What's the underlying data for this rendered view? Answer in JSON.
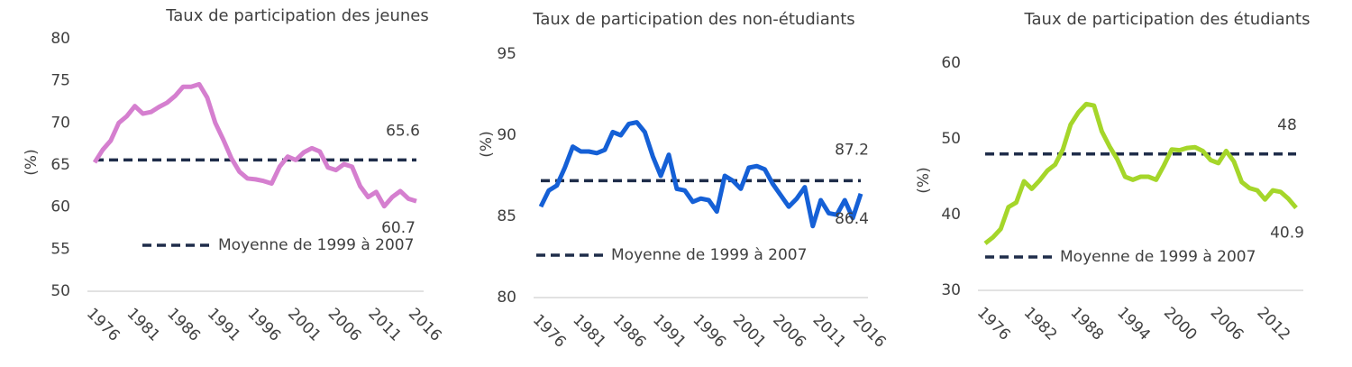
{
  "chart_data": [
    {
      "type": "line",
      "title": "Taux de participation des jeunes",
      "y_label": "(%)",
      "x": [
        1976,
        1977,
        1978,
        1979,
        1980,
        1981,
        1982,
        1983,
        1984,
        1985,
        1986,
        1987,
        1988,
        1989,
        1990,
        1991,
        1992,
        1993,
        1994,
        1995,
        1996,
        1997,
        1998,
        1999,
        2000,
        2001,
        2002,
        2003,
        2004,
        2005,
        2006,
        2007,
        2008,
        2009,
        2010,
        2011,
        2012,
        2013,
        2014,
        2015,
        2016
      ],
      "xlim": [
        1976,
        2016
      ],
      "xticks": [
        1976,
        1981,
        1986,
        1991,
        1996,
        2001,
        2006,
        2011,
        2016
      ],
      "ylim": [
        50,
        80
      ],
      "yticks": [
        50,
        55,
        60,
        65,
        70,
        75,
        80
      ],
      "series": [
        {
          "name": "Taux de participation des jeunes",
          "color": "#d57fcf",
          "values": [
            65.3,
            66.8,
            67.9,
            70.0,
            70.8,
            72.0,
            71.1,
            71.3,
            71.9,
            72.4,
            73.2,
            74.3,
            74.3,
            74.6,
            73.0,
            70.0,
            68.0,
            65.8,
            64.2,
            63.4,
            63.3,
            63.1,
            62.8,
            64.8,
            66.0,
            65.6,
            66.5,
            67.0,
            66.6,
            64.7,
            64.4,
            65.1,
            64.8,
            62.5,
            61.2,
            61.8,
            60.1,
            61.2,
            61.9,
            61.0,
            60.7
          ]
        }
      ],
      "average": {
        "name": "Moyenne de 1999 à 2007",
        "value": 65.6,
        "color": "#1f2d4a"
      }
    },
    {
      "type": "line",
      "title": "Taux de participation des non-étudiants",
      "y_label": "(%)",
      "x": [
        1976,
        1977,
        1978,
        1979,
        1980,
        1981,
        1982,
        1983,
        1984,
        1985,
        1986,
        1987,
        1988,
        1989,
        1990,
        1991,
        1992,
        1993,
        1994,
        1995,
        1996,
        1997,
        1998,
        1999,
        2000,
        2001,
        2002,
        2003,
        2004,
        2005,
        2006,
        2007,
        2008,
        2009,
        2010,
        2011,
        2012,
        2013,
        2014,
        2015,
        2016
      ],
      "xlim": [
        1976,
        2016
      ],
      "xticks": [
        1976,
        1981,
        1986,
        1991,
        1996,
        2001,
        2006,
        2011,
        2016
      ],
      "ylim": [
        80,
        95
      ],
      "yticks": [
        80,
        85,
        90,
        95
      ],
      "series": [
        {
          "name": "Taux de participation des non-étudiants",
          "color": "#1560d6",
          "values": [
            85.6,
            86.6,
            86.9,
            88.0,
            89.3,
            89.0,
            89.0,
            88.9,
            89.1,
            90.2,
            90.0,
            90.7,
            90.8,
            90.2,
            88.7,
            87.5,
            88.8,
            86.7,
            86.6,
            85.9,
            86.1,
            86.0,
            85.3,
            87.5,
            87.2,
            86.7,
            88.0,
            88.1,
            87.9,
            87.0,
            86.3,
            85.6,
            86.1,
            86.8,
            84.4,
            86.0,
            85.2,
            85.1,
            86.0,
            84.9,
            86.4
          ]
        }
      ],
      "average": {
        "name": "Moyenne de 1999 à 2007",
        "value": 87.2,
        "color": "#1f2d4a"
      }
    },
    {
      "type": "line",
      "title": "Taux de participation des étudiants",
      "y_label": "(%)",
      "x": [
        1976,
        1977,
        1978,
        1979,
        1980,
        1981,
        1982,
        1983,
        1984,
        1985,
        1986,
        1987,
        1988,
        1989,
        1990,
        1991,
        1992,
        1993,
        1994,
        1995,
        1996,
        1997,
        1998,
        1999,
        2000,
        2001,
        2002,
        2003,
        2004,
        2005,
        2006,
        2007,
        2008,
        2009,
        2010,
        2011,
        2012,
        2013,
        2014,
        2015,
        2016
      ],
      "xlim": [
        1976,
        2016
      ],
      "xticks": [
        1976,
        1982,
        1988,
        1994,
        2000,
        2006,
        2012
      ],
      "ylim": [
        30,
        60
      ],
      "yticks": [
        30,
        40,
        50,
        60
      ],
      "series": [
        {
          "name": "Taux de participation des étudiants",
          "color": "#a5d62a",
          "values": [
            36.2,
            37.0,
            38.1,
            41.0,
            41.6,
            44.4,
            43.4,
            44.5,
            45.8,
            46.6,
            48.6,
            51.9,
            53.5,
            54.6,
            54.4,
            51.0,
            49.0,
            47.3,
            45.0,
            44.6,
            45.0,
            45.0,
            44.6,
            46.5,
            48.6,
            48.5,
            48.8,
            48.9,
            48.4,
            47.2,
            46.8,
            48.4,
            47.0,
            44.3,
            43.5,
            43.2,
            42.0,
            43.2,
            43.0,
            42.1,
            40.9
          ]
        }
      ],
      "average": {
        "name": "Moyenne de 1999 à 2007",
        "value": 48.0,
        "color": "#1f2d4a"
      }
    }
  ]
}
